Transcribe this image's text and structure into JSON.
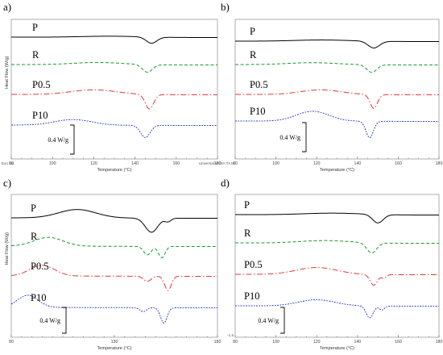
{
  "colors": {
    "P": "#000000",
    "R": "#1a9b2a",
    "P0.5": "#e03a3a",
    "P10": "#2b36c8"
  },
  "dashes": {
    "P": "",
    "R": "4 2.5",
    "P0.5": "7 2.5 1.5 2.5",
    "P10": "2 1.5 1.5 1.5"
  },
  "scale_bar_label": "0.4 W/g",
  "chart_data": [
    {
      "panel": "a)",
      "type": "line",
      "xlabel": "Temperature (°C)",
      "ylabel": "Heat Flow (W/g)",
      "xlim": [
        80,
        180
      ],
      "xticks": [
        80,
        100,
        120,
        140,
        160,
        180
      ],
      "grid": false,
      "corner_note": "Exo Up",
      "series": [
        {
          "name": "P",
          "baseline": 0,
          "broad": [
            128,
            0.1,
            14
          ],
          "peaks": [
            [
              148,
              -0.55,
              2.6
            ]
          ]
        },
        {
          "name": "R",
          "baseline": -0.9,
          "broad": [
            122,
            0.2,
            12
          ],
          "peaks": [
            [
              146,
              -0.68,
              2.4
            ]
          ]
        },
        {
          "name": "P0.5",
          "baseline": -1.95,
          "broad": [
            120,
            0.42,
            11
          ],
          "peaks": [
            [
              147,
              -1.28,
              2.0
            ]
          ]
        },
        {
          "name": "P10",
          "baseline": -3.05,
          "broad": [
            110,
            0.5,
            9
          ],
          "peaks": [
            [
              145,
              -1.08,
              2.3
            ]
          ]
        }
      ]
    },
    {
      "panel": "b)",
      "type": "line",
      "xlabel": "Temperature (°C)",
      "ylabel": "",
      "xlim": [
        80,
        180
      ],
      "xticks": [
        80,
        100,
        120,
        140,
        160,
        180
      ],
      "grid": false,
      "corner_note": "Universal V4.5A TA In",
      "series": [
        {
          "name": "P",
          "baseline": 0,
          "broad": [
            123,
            0.12,
            14
          ],
          "peaks": [
            [
              148,
              -0.6,
              2.8
            ]
          ]
        },
        {
          "name": "R",
          "baseline": -0.85,
          "broad": [
            118,
            0.18,
            12
          ],
          "peaks": [
            [
              147,
              -0.68,
              2.4
            ]
          ]
        },
        {
          "name": "P0.5",
          "baseline": -2.0,
          "broad": [
            122,
            0.42,
            10
          ],
          "peaks": [
            [
              148,
              -1.22,
              1.8
            ]
          ]
        },
        {
          "name": "P10",
          "baseline": -3.0,
          "broad": [
            118,
            0.88,
            8
          ],
          "peaks": [
            [
              146,
              -1.45,
              1.8
            ]
          ]
        }
      ]
    },
    {
      "panel": "c)",
      "type": "line",
      "xlabel": "Temperature (°C)",
      "ylabel": "Heat Flow (W/g)",
      "xlim": [
        80,
        180
      ],
      "xticks": [
        80,
        130,
        180
      ],
      "grid": false,
      "corner_note": "",
      "series": [
        {
          "name": "P",
          "baseline": 0,
          "broad": [
            112,
            0.75,
            9
          ],
          "peaks": [
            [
              148,
              -1.25,
              3.0
            ],
            [
              156,
              -0.3,
              1.5
            ]
          ]
        },
        {
          "name": "R",
          "baseline": -1.1,
          "broad": [
            98,
            0.78,
            7
          ],
          "peaks": [
            [
              146,
              -0.75,
              1.8
            ],
            [
              153,
              -1.0,
              1.6
            ]
          ]
        },
        {
          "name": "P0.5",
          "baseline": -2.3,
          "broad": [
            95,
            0.95,
            6
          ],
          "peaks": [
            [
              146,
              -0.45,
              1.8
            ],
            [
              156,
              -1.25,
              1.6
            ]
          ]
        },
        {
          "name": "P10",
          "baseline": -3.5,
          "broad": [
            88,
            1.08,
            5
          ],
          "peaks": [
            [
              144,
              -0.35,
              1.6
            ],
            [
              154,
              -1.35,
              1.6
            ]
          ]
        }
      ]
    },
    {
      "panel": "d)",
      "type": "line",
      "xlabel": "Temperature (°C)",
      "ylabel": "",
      "xlim": [
        80,
        180
      ],
      "xticks": [
        80,
        100,
        120,
        140,
        160,
        180
      ],
      "grid": false,
      "corner_note": "",
      "y_tick_note": "-1.5",
      "series": [
        {
          "name": "P",
          "baseline": 0,
          "broad": [
            128,
            0.15,
            14
          ],
          "peaks": [
            [
              150,
              -0.75,
              2.6
            ]
          ]
        },
        {
          "name": "R",
          "baseline": -0.95,
          "broad": [
            124,
            0.22,
            12
          ],
          "peaks": [
            [
              147,
              -0.9,
              2.4
            ]
          ]
        },
        {
          "name": "P0.5",
          "baseline": -2.05,
          "broad": [
            120,
            0.62,
            10
          ],
          "peaks": [
            [
              148,
              -0.95,
              1.8
            ],
            [
              153,
              -0.3,
              1.2
            ]
          ]
        },
        {
          "name": "P10",
          "baseline": -3.15,
          "broad": [
            120,
            0.55,
            9
          ],
          "peaks": [
            [
              146,
              -1.05,
              1.7
            ],
            [
              152,
              -0.35,
              1.2
            ]
          ]
        }
      ]
    }
  ]
}
